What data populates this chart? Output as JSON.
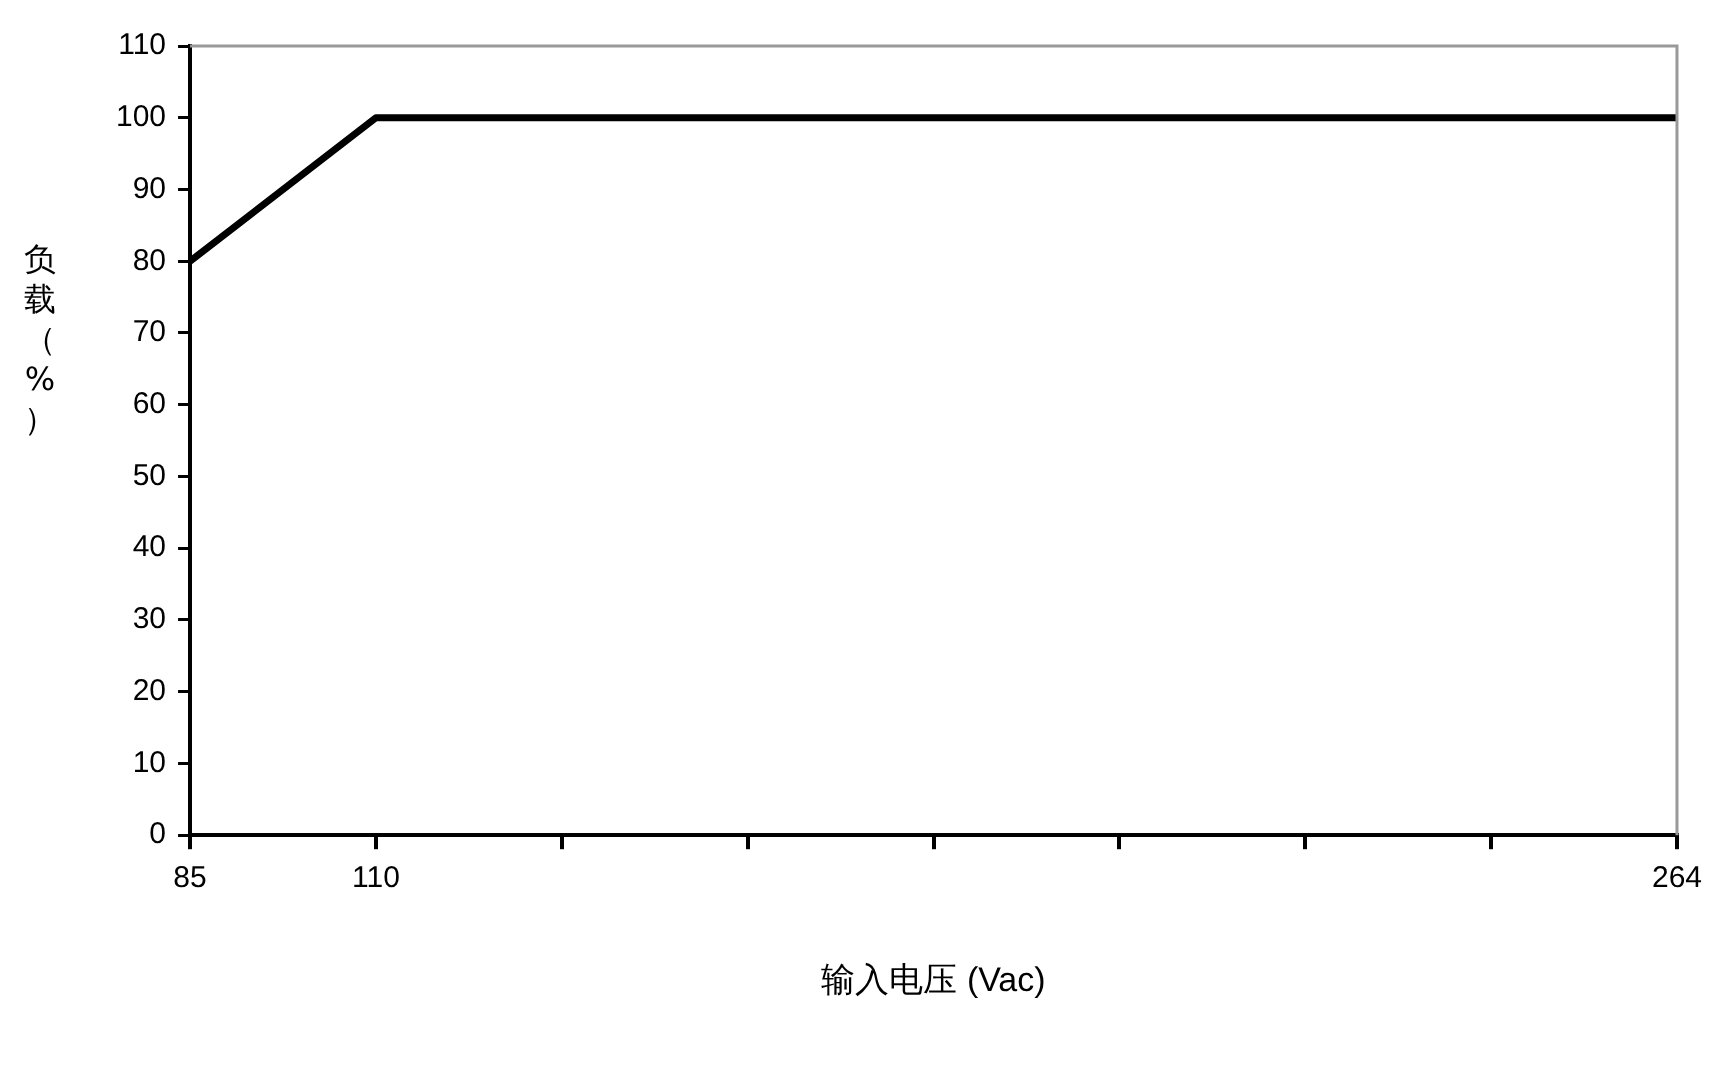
{
  "chart_data": {
    "type": "line",
    "xlabel": "输入电压 (Vac)",
    "ylabel": "负载（%）",
    "categories": [
      "85",
      "110",
      null,
      null,
      null,
      null,
      null,
      null,
      "264"
    ],
    "series": [
      {
        "color": "#000000",
        "values": [
          80,
          100,
          100,
          100,
          100,
          100,
          100,
          100,
          100
        ]
      }
    ],
    "ylim": [
      0,
      110
    ],
    "yticks": [
      0,
      10,
      20,
      30,
      40,
      50,
      60,
      70,
      80,
      90,
      100,
      110
    ],
    "grid": false,
    "legend": false,
    "marker": "none",
    "line_style": "solid"
  }
}
